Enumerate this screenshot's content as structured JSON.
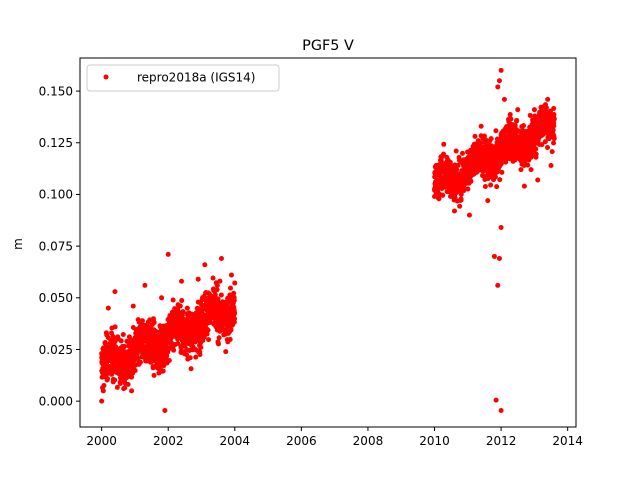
{
  "chart_data": {
    "type": "scatter",
    "title": "PGF5 V",
    "xlabel": "",
    "ylabel": "m",
    "xlim": [
      1999.35,
      2014.25
    ],
    "ylim": [
      -0.0125,
      0.166
    ],
    "xticks": [
      2000,
      2002,
      2004,
      2006,
      2008,
      2010,
      2012,
      2014
    ],
    "yticks": [
      0.0,
      0.025,
      0.05,
      0.075,
      0.1,
      0.125,
      0.15
    ],
    "ytick_labels": [
      "0.000",
      "0.025",
      "0.050",
      "0.075",
      "0.100",
      "0.125",
      "0.150"
    ],
    "grid": false,
    "legend_position": "top-left",
    "series": [
      {
        "name": "repro2018a (IGS14)",
        "color": "#ff0000",
        "marker": "dot",
        "segments": [
          {
            "x_start": 2000.0,
            "x_end": 2004.0,
            "trend": [
              0.016,
              0.046
            ],
            "spread": 0.0075
          },
          {
            "x_start": 2010.0,
            "x_end": 2013.6,
            "trend": [
              0.104,
              0.134
            ],
            "spread": 0.0065
          }
        ],
        "points": [
          [
            2000.0,
            0.0
          ],
          [
            2000.05,
            0.005
          ],
          [
            2000.1,
            0.012
          ],
          [
            2000.2,
            0.045
          ],
          [
            2000.4,
            0.053
          ],
          [
            2000.9,
            0.005
          ],
          [
            2000.95,
            0.046
          ],
          [
            2001.3,
            0.056
          ],
          [
            2001.8,
            0.05
          ],
          [
            2002.0,
            0.071
          ],
          [
            2001.9,
            -0.0045
          ],
          [
            2002.4,
            0.058
          ],
          [
            2002.9,
            0.059
          ],
          [
            2003.1,
            0.066
          ],
          [
            2003.6,
            0.069
          ],
          [
            2003.9,
            0.061
          ],
          [
            2010.0,
            0.099
          ],
          [
            2010.05,
            0.114
          ],
          [
            2010.6,
            0.092
          ],
          [
            2010.65,
            0.121
          ],
          [
            2011.05,
            0.09
          ],
          [
            2011.4,
            0.133
          ],
          [
            2011.6,
            0.097
          ],
          [
            2011.7,
            0.127
          ],
          [
            2011.8,
            0.07
          ],
          [
            2011.85,
            0.0005
          ],
          [
            2011.9,
            0.056
          ],
          [
            2011.95,
            0.069
          ],
          [
            2012.0,
            0.084
          ],
          [
            2012.0,
            -0.0045
          ],
          [
            2011.95,
            0.155
          ],
          [
            2012.0,
            0.16
          ],
          [
            2011.9,
            0.152
          ],
          [
            2012.1,
            0.146
          ],
          [
            2012.5,
            0.141
          ],
          [
            2012.7,
            0.104
          ],
          [
            2012.9,
            0.112
          ],
          [
            2013.0,
            0.141
          ],
          [
            2013.1,
            0.107
          ],
          [
            2013.3,
            0.14
          ],
          [
            2013.4,
            0.146
          ],
          [
            2013.5,
            0.114
          ]
        ]
      }
    ]
  }
}
